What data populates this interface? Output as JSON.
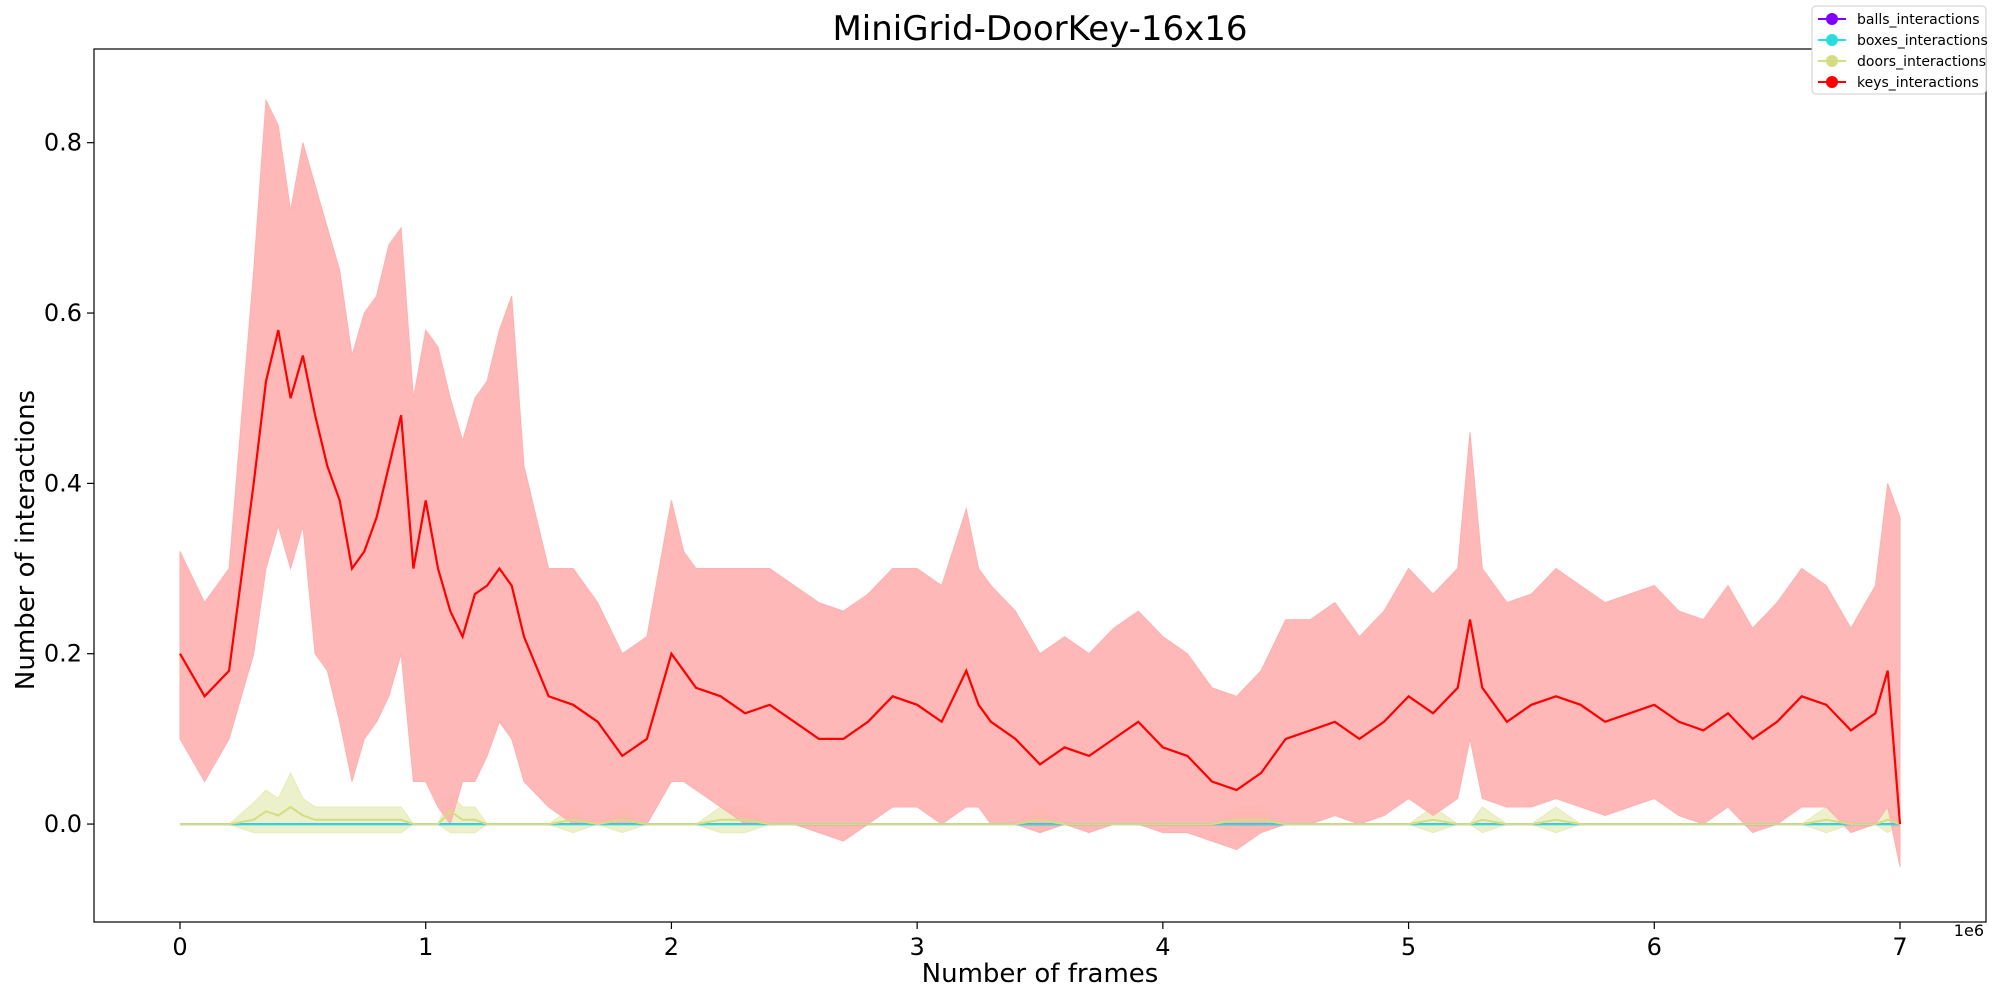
{
  "chart_data": {
    "type": "line",
    "title": "MiniGrid-DoorKey-16x16",
    "xlabel": "Number of frames",
    "ylabel": "Number of interactions",
    "x_offset_label": "1e6",
    "xlim": [
      -0.35,
      7.35
    ],
    "ylim": [
      -0.115,
      0.91
    ],
    "x_ticks": [
      0,
      1,
      2,
      3,
      4,
      5,
      6,
      7
    ],
    "x_tick_labels": [
      "0",
      "1",
      "2",
      "3",
      "4",
      "5",
      "6",
      "7"
    ],
    "y_ticks": [
      0.0,
      0.2,
      0.4,
      0.6,
      0.8
    ],
    "y_tick_labels": [
      "0.0",
      "0.2",
      "0.4",
      "0.6",
      "0.8"
    ],
    "grid": false,
    "legend_position": "top-right",
    "x": [
      0.0,
      0.1,
      0.2,
      0.3,
      0.35,
      0.4,
      0.45,
      0.5,
      0.55,
      0.6,
      0.65,
      0.7,
      0.75,
      0.8,
      0.85,
      0.9,
      0.95,
      1.0,
      1.05,
      1.1,
      1.15,
      1.2,
      1.25,
      1.3,
      1.35,
      1.4,
      1.5,
      1.6,
      1.7,
      1.8,
      1.9,
      2.0,
      2.05,
      2.1,
      2.2,
      2.3,
      2.4,
      2.5,
      2.6,
      2.7,
      2.8,
      2.9,
      3.0,
      3.1,
      3.2,
      3.25,
      3.3,
      3.4,
      3.5,
      3.6,
      3.7,
      3.8,
      3.9,
      4.0,
      4.1,
      4.2,
      4.3,
      4.4,
      4.5,
      4.6,
      4.7,
      4.8,
      4.9,
      5.0,
      5.1,
      5.2,
      5.25,
      5.3,
      5.4,
      5.5,
      5.6,
      5.7,
      5.8,
      5.9,
      6.0,
      6.1,
      6.2,
      6.3,
      6.4,
      6.5,
      6.6,
      6.7,
      6.8,
      6.9,
      6.95,
      7.0
    ],
    "series": [
      {
        "name": "balls_interactions",
        "color": "#8000ff",
        "values": [
          0.0,
          0.0,
          0.0,
          0.0,
          0.0,
          0.0,
          0.0,
          0.0,
          0.0,
          0.0,
          0.0,
          0.0,
          0.0,
          0.0,
          0.0,
          0.0,
          0.0,
          0.0,
          0.0,
          0.0,
          0.0,
          0.0,
          0.0,
          0.0,
          0.0,
          0.0,
          0.0,
          0.0,
          0.0,
          0.0,
          0.0,
          0.0,
          0.0,
          0.0,
          0.0,
          0.0,
          0.0,
          0.0,
          0.0,
          0.0,
          0.0,
          0.0,
          0.0,
          0.0,
          0.0,
          0.0,
          0.0,
          0.0,
          0.0,
          0.0,
          0.0,
          0.0,
          0.0,
          0.0,
          0.0,
          0.0,
          0.0,
          0.0,
          0.0,
          0.0,
          0.0,
          0.0,
          0.0,
          0.0,
          0.0,
          0.0,
          0.0,
          0.0,
          0.0,
          0.0,
          0.0,
          0.0,
          0.0,
          0.0,
          0.0,
          0.0,
          0.0,
          0.0,
          0.0,
          0.0,
          0.0,
          0.0,
          0.0,
          0.0,
          0.0,
          0.0
        ]
      },
      {
        "name": "boxes_interactions",
        "color": "#2adddd",
        "values": [
          0.0,
          0.0,
          0.0,
          0.0,
          0.0,
          0.0,
          0.0,
          0.0,
          0.0,
          0.0,
          0.0,
          0.0,
          0.0,
          0.0,
          0.0,
          0.0,
          0.0,
          0.0,
          0.0,
          0.0,
          0.0,
          0.0,
          0.0,
          0.0,
          0.0,
          0.0,
          0.0,
          0.0,
          0.0,
          0.0,
          0.0,
          0.0,
          0.0,
          0.0,
          0.0,
          0.0,
          0.0,
          0.0,
          0.0,
          0.0,
          0.0,
          0.0,
          0.0,
          0.0,
          0.0,
          0.0,
          0.0,
          0.0,
          0.0,
          0.0,
          0.0,
          0.0,
          0.0,
          0.0,
          0.0,
          0.0,
          0.0,
          0.0,
          0.0,
          0.0,
          0.0,
          0.0,
          0.0,
          0.0,
          0.0,
          0.0,
          0.0,
          0.0,
          0.0,
          0.0,
          0.0,
          0.0,
          0.0,
          0.0,
          0.0,
          0.0,
          0.0,
          0.0,
          0.0,
          0.0,
          0.0,
          0.0,
          0.0,
          0.0,
          0.0,
          0.0
        ],
        "lower": [
          0.0,
          0.0,
          0.0,
          0.0,
          0.0,
          0.0,
          0.0,
          0.0,
          0.0,
          0.0,
          0.0,
          0.0,
          0.0,
          0.0,
          0.0,
          0.0,
          0.0,
          0.0,
          0.0,
          0.0,
          0.0,
          0.0,
          0.0,
          0.0,
          0.0,
          0.0,
          0.0,
          0.0,
          0.0,
          0.0,
          0.0,
          0.0,
          0.0,
          0.0,
          0.0,
          0.0,
          0.0,
          0.0,
          0.0,
          0.0,
          0.0,
          0.0,
          0.0,
          0.0,
          0.0,
          0.0,
          0.0,
          0.0,
          0.0,
          0.0,
          0.0,
          0.0,
          0.0,
          0.0,
          0.0,
          0.0,
          0.0,
          0.0,
          0.0,
          0.0,
          0.0,
          0.0,
          0.0,
          0.0,
          0.0,
          0.0,
          0.0,
          0.0,
          0.0,
          0.0,
          0.0,
          0.0,
          0.0,
          0.0,
          0.0,
          0.0,
          0.0,
          0.0,
          0.0,
          0.0,
          0.0,
          0.0,
          0.0,
          0.0,
          0.0,
          0.0
        ],
        "upper": [
          0.0,
          0.0,
          0.0,
          0.0,
          0.0,
          0.0,
          0.0,
          0.0,
          0.0,
          0.0,
          0.0,
          0.0,
          0.0,
          0.0,
          0.0,
          0.0,
          0.0,
          0.0,
          0.0,
          0.0,
          0.0,
          0.0,
          0.0,
          0.0,
          0.0,
          0.0,
          0.0,
          0.0,
          0.0,
          0.0,
          0.0,
          0.0,
          0.0,
          0.0,
          0.0,
          0.0,
          0.0,
          0.0,
          0.0,
          0.0,
          0.0,
          0.0,
          0.0,
          0.0,
          0.0,
          0.0,
          0.0,
          0.0,
          0.0,
          0.0,
          0.0,
          0.0,
          0.0,
          0.0,
          0.0,
          0.0,
          0.0,
          0.0,
          0.0,
          0.0,
          0.0,
          0.0,
          0.0,
          0.0,
          0.0,
          0.0,
          0.0,
          0.0,
          0.0,
          0.0,
          0.0,
          0.0,
          0.0,
          0.0,
          0.0,
          0.0,
          0.0,
          0.0,
          0.0,
          0.0,
          0.0,
          0.0,
          0.0,
          0.0,
          0.0,
          0.0
        ]
      },
      {
        "name": "doors_interactions",
        "color": "#d4dd80",
        "band_color": "#e6ebb5",
        "values": [
          0.0,
          0.0,
          0.0,
          0.005,
          0.015,
          0.01,
          0.02,
          0.01,
          0.005,
          0.005,
          0.005,
          0.005,
          0.005,
          0.005,
          0.005,
          0.005,
          0.0,
          0.0,
          0.0,
          0.015,
          0.005,
          0.005,
          0.0,
          0.0,
          0.0,
          0.0,
          0.0,
          0.005,
          0.0,
          0.005,
          0.0,
          0.0,
          0.0,
          0.0,
          0.005,
          0.005,
          0.0,
          0.0,
          0.0,
          0.0,
          0.0,
          0.0,
          0.0,
          0.0,
          0.0,
          0.0,
          0.0,
          0.0,
          0.005,
          0.0,
          0.0,
          0.0,
          0.0,
          0.0,
          0.0,
          0.0,
          0.005,
          0.005,
          0.0,
          0.0,
          0.0,
          0.0,
          0.0,
          0.0,
          0.005,
          0.0,
          0.0,
          0.005,
          0.0,
          0.0,
          0.005,
          0.0,
          0.0,
          0.0,
          0.0,
          0.0,
          0.0,
          0.0,
          0.0,
          0.0,
          0.0,
          0.005,
          0.0,
          0.0,
          0.005,
          0.0
        ],
        "lower": [
          0.0,
          0.0,
          0.0,
          -0.01,
          -0.01,
          -0.01,
          -0.01,
          -0.01,
          -0.01,
          -0.01,
          -0.01,
          -0.01,
          -0.01,
          -0.01,
          -0.01,
          -0.01,
          0.0,
          0.0,
          0.0,
          -0.01,
          -0.01,
          -0.01,
          0.0,
          0.0,
          0.0,
          0.0,
          0.0,
          -0.01,
          0.0,
          -0.01,
          0.0,
          0.0,
          0.0,
          0.0,
          -0.01,
          -0.01,
          0.0,
          0.0,
          0.0,
          0.0,
          0.0,
          0.0,
          0.0,
          0.0,
          0.0,
          0.0,
          0.0,
          0.0,
          -0.01,
          0.0,
          0.0,
          0.0,
          0.0,
          0.0,
          0.0,
          0.0,
          -0.01,
          -0.01,
          0.0,
          0.0,
          0.0,
          0.0,
          0.0,
          0.0,
          -0.01,
          0.0,
          0.0,
          -0.01,
          0.0,
          0.0,
          -0.01,
          0.0,
          0.0,
          0.0,
          0.0,
          0.0,
          0.0,
          0.0,
          0.0,
          0.0,
          0.0,
          -0.01,
          0.0,
          0.0,
          -0.01,
          0.0
        ],
        "upper": [
          0.0,
          0.0,
          0.0,
          0.025,
          0.04,
          0.03,
          0.06,
          0.03,
          0.02,
          0.02,
          0.02,
          0.02,
          0.02,
          0.02,
          0.02,
          0.02,
          0.0,
          0.0,
          0.0,
          0.035,
          0.02,
          0.02,
          0.0,
          0.0,
          0.0,
          0.0,
          0.0,
          0.02,
          0.0,
          0.02,
          0.0,
          0.0,
          0.0,
          0.0,
          0.02,
          0.02,
          0.0,
          0.0,
          0.0,
          0.0,
          0.0,
          0.0,
          0.0,
          0.0,
          0.0,
          0.0,
          0.0,
          0.0,
          0.02,
          0.0,
          0.0,
          0.0,
          0.0,
          0.0,
          0.0,
          0.0,
          0.02,
          0.02,
          0.0,
          0.0,
          0.0,
          0.0,
          0.0,
          0.0,
          0.02,
          0.0,
          0.0,
          0.02,
          0.0,
          0.0,
          0.02,
          0.0,
          0.0,
          0.0,
          0.0,
          0.0,
          0.0,
          0.0,
          0.0,
          0.0,
          0.0,
          0.02,
          0.0,
          0.0,
          0.02,
          0.0
        ]
      },
      {
        "name": "keys_interactions",
        "color": "#ff0000",
        "band_color": "#ffb0b0",
        "values": [
          0.2,
          0.15,
          0.18,
          0.4,
          0.52,
          0.58,
          0.5,
          0.55,
          0.48,
          0.42,
          0.38,
          0.3,
          0.32,
          0.36,
          0.42,
          0.48,
          0.3,
          0.38,
          0.3,
          0.25,
          0.22,
          0.27,
          0.28,
          0.3,
          0.28,
          0.22,
          0.15,
          0.14,
          0.12,
          0.08,
          0.1,
          0.2,
          0.18,
          0.16,
          0.15,
          0.13,
          0.14,
          0.12,
          0.1,
          0.1,
          0.12,
          0.15,
          0.14,
          0.12,
          0.18,
          0.14,
          0.12,
          0.1,
          0.07,
          0.09,
          0.08,
          0.1,
          0.12,
          0.09,
          0.08,
          0.05,
          0.04,
          0.06,
          0.1,
          0.11,
          0.12,
          0.1,
          0.12,
          0.15,
          0.13,
          0.16,
          0.24,
          0.16,
          0.12,
          0.14,
          0.15,
          0.14,
          0.12,
          0.13,
          0.14,
          0.12,
          0.11,
          0.13,
          0.1,
          0.12,
          0.15,
          0.14,
          0.11,
          0.13,
          0.18,
          0.0
        ],
        "lower": [
          0.1,
          0.05,
          0.1,
          0.2,
          0.3,
          0.35,
          0.3,
          0.35,
          0.2,
          0.18,
          0.12,
          0.05,
          0.1,
          0.12,
          0.15,
          0.2,
          0.05,
          0.05,
          0.02,
          0.0,
          0.05,
          0.05,
          0.08,
          0.12,
          0.1,
          0.05,
          0.02,
          0.0,
          0.0,
          0.0,
          0.0,
          0.05,
          0.05,
          0.04,
          0.02,
          0.0,
          0.0,
          0.0,
          -0.01,
          -0.02,
          0.0,
          0.02,
          0.02,
          0.0,
          0.02,
          0.02,
          0.0,
          0.0,
          -0.01,
          0.0,
          -0.01,
          0.0,
          0.0,
          -0.01,
          -0.01,
          -0.02,
          -0.03,
          -0.01,
          0.0,
          0.0,
          0.01,
          0.0,
          0.01,
          0.03,
          0.01,
          0.03,
          0.1,
          0.03,
          0.02,
          0.02,
          0.03,
          0.02,
          0.01,
          0.02,
          0.03,
          0.01,
          0.0,
          0.02,
          -0.01,
          0.0,
          0.02,
          0.02,
          -0.01,
          0.0,
          0.02,
          -0.05
        ],
        "upper": [
          0.32,
          0.26,
          0.3,
          0.65,
          0.85,
          0.82,
          0.72,
          0.8,
          0.75,
          0.7,
          0.65,
          0.55,
          0.6,
          0.62,
          0.68,
          0.7,
          0.5,
          0.58,
          0.56,
          0.5,
          0.45,
          0.5,
          0.52,
          0.58,
          0.62,
          0.42,
          0.3,
          0.3,
          0.26,
          0.2,
          0.22,
          0.38,
          0.32,
          0.3,
          0.3,
          0.3,
          0.3,
          0.28,
          0.26,
          0.25,
          0.27,
          0.3,
          0.3,
          0.28,
          0.37,
          0.3,
          0.28,
          0.25,
          0.2,
          0.22,
          0.2,
          0.23,
          0.25,
          0.22,
          0.2,
          0.16,
          0.15,
          0.18,
          0.24,
          0.24,
          0.26,
          0.22,
          0.25,
          0.3,
          0.27,
          0.3,
          0.46,
          0.3,
          0.26,
          0.27,
          0.3,
          0.28,
          0.26,
          0.27,
          0.28,
          0.25,
          0.24,
          0.28,
          0.23,
          0.26,
          0.3,
          0.28,
          0.23,
          0.28,
          0.4,
          0.36
        ]
      }
    ],
    "legend": [
      "balls_interactions",
      "boxes_interactions",
      "doors_interactions",
      "keys_interactions"
    ]
  }
}
